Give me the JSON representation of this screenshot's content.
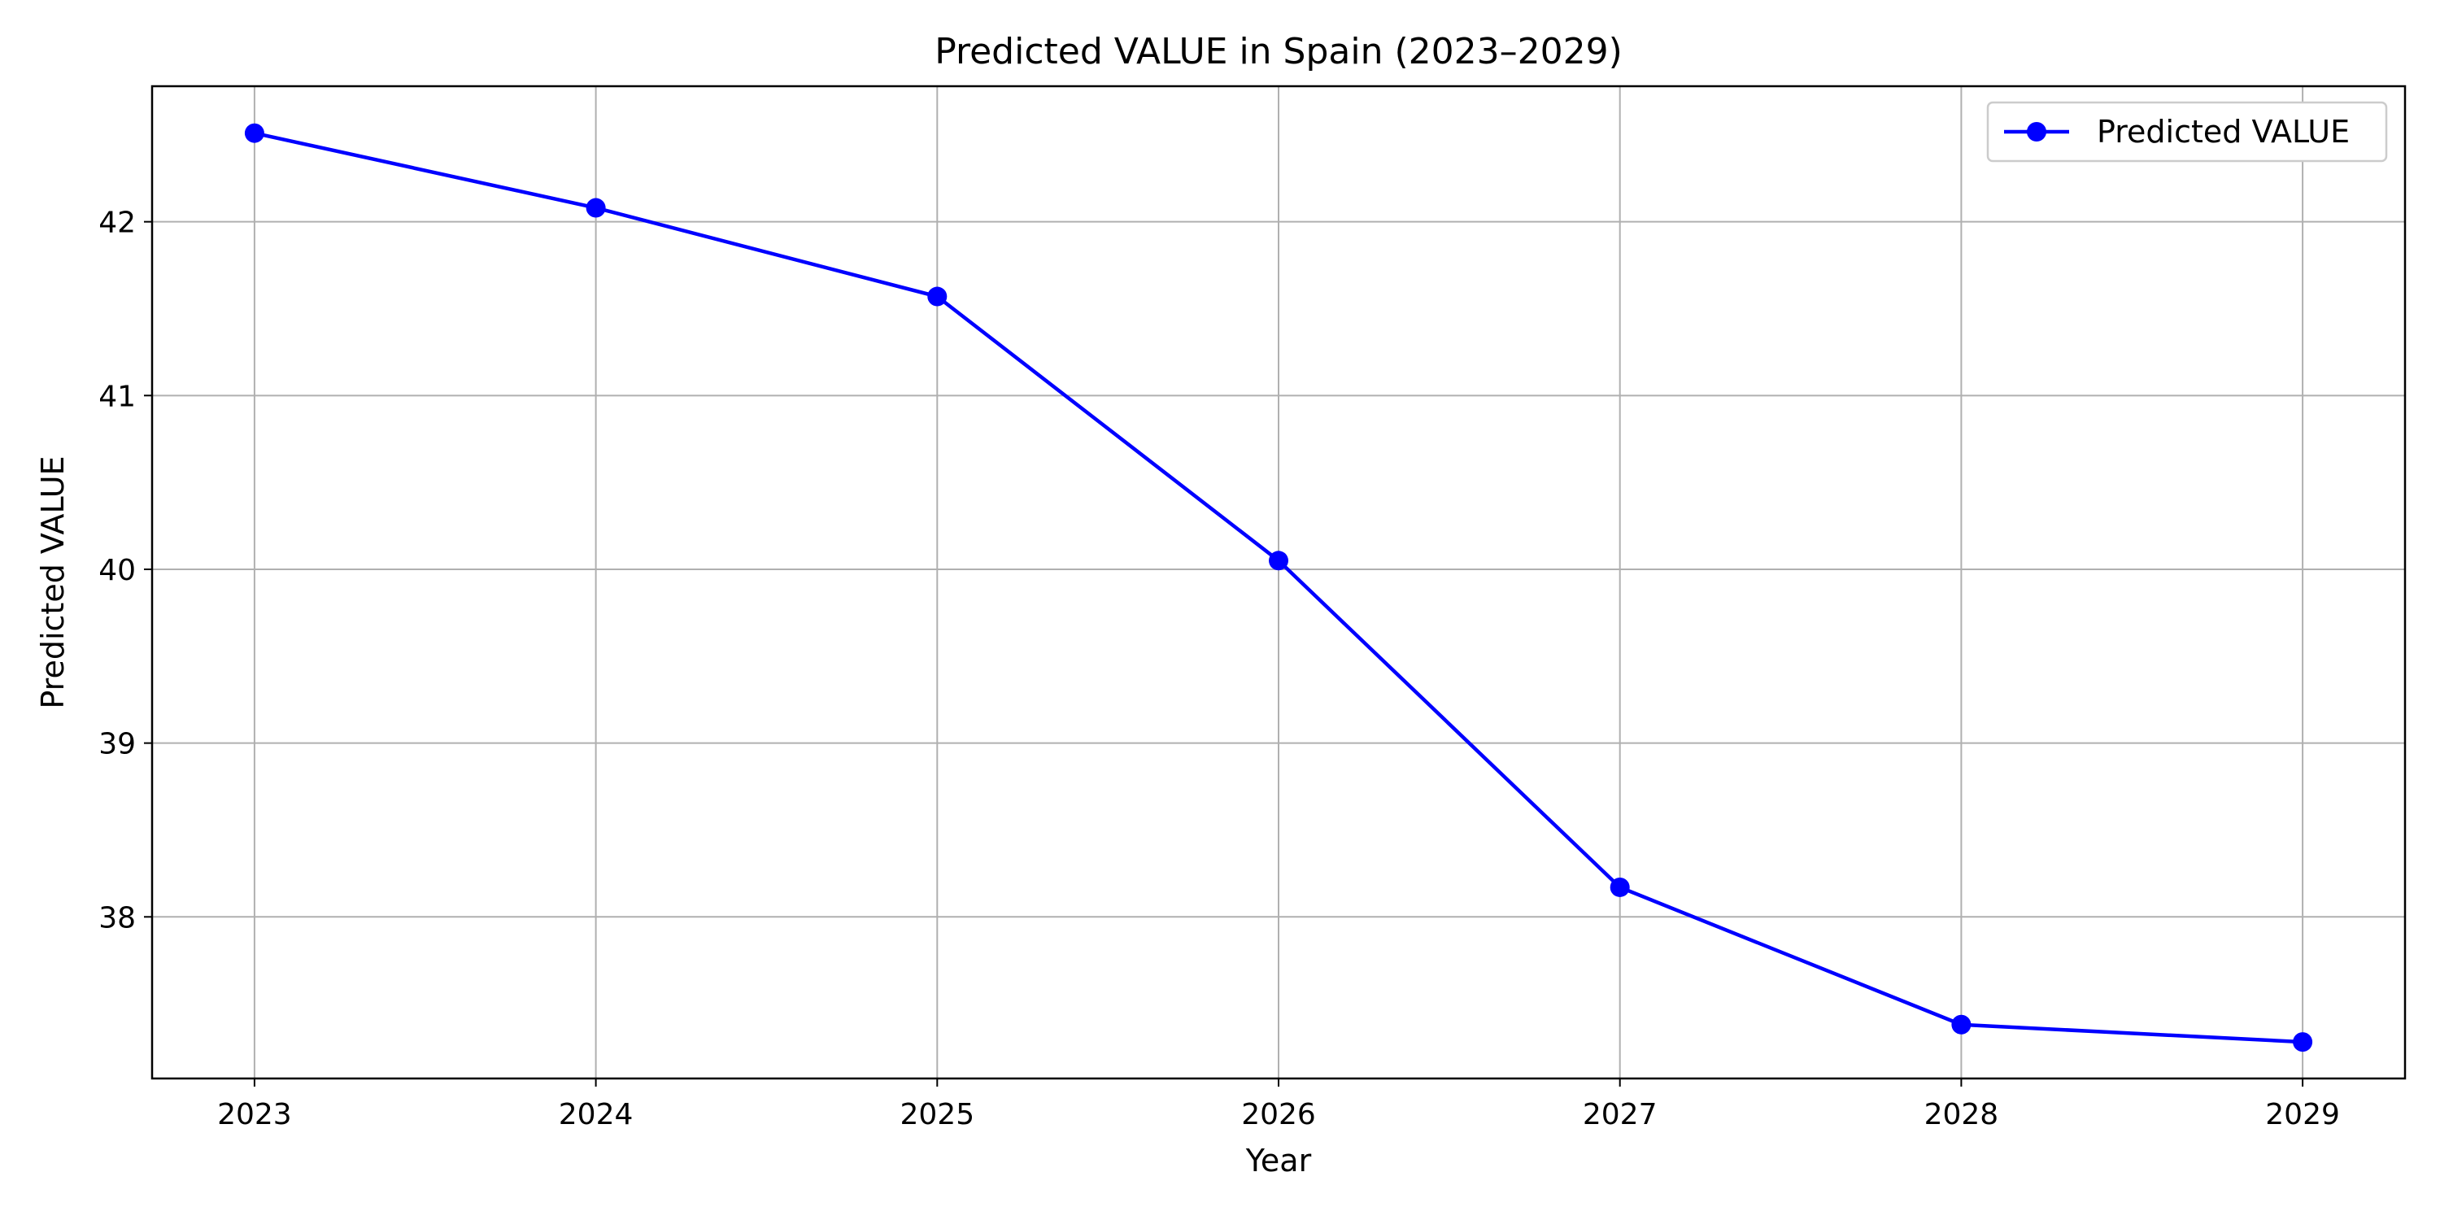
{
  "chart_data": {
    "type": "line",
    "title": "Predicted VALUE in Spain (2023–2029)",
    "xlabel": "Year",
    "ylabel": "Predicted VALUE",
    "x": [
      2023,
      2024,
      2025,
      2026,
      2027,
      2028,
      2029
    ],
    "x_tick_labels": [
      "2023",
      "2024",
      "2025",
      "2026",
      "2027",
      "2028",
      "2029"
    ],
    "y_ticks": [
      38,
      39,
      40,
      41,
      42
    ],
    "y_tick_labels": [
      "38",
      "39",
      "40",
      "41",
      "42"
    ],
    "xlim": [
      2022.7,
      2029.3
    ],
    "ylim": [
      37.07,
      42.78
    ],
    "grid": true,
    "legend_position": "top-right",
    "series": [
      {
        "name": "Predicted VALUE",
        "color": "#0000ff",
        "marker": "circle",
        "values": [
          42.51,
          42.08,
          41.57,
          40.05,
          38.17,
          37.38,
          37.28
        ]
      }
    ]
  }
}
